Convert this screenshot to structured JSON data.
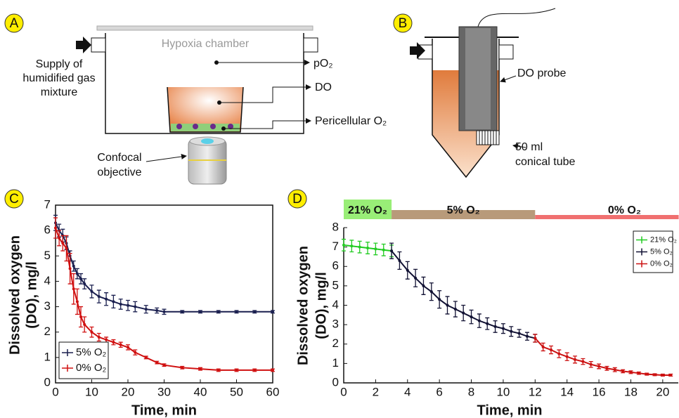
{
  "panel_labels": [
    "A",
    "B",
    "C",
    "D"
  ],
  "diagram_a": {
    "chamber": "Hypoxia chamber",
    "supply": [
      "Supply of",
      "humidified gas",
      "mixture"
    ],
    "po2": "pO₂",
    "do": "DO",
    "pericellular": "Pericellular  O₂",
    "objective": [
      "Confocal",
      "objective"
    ]
  },
  "diagram_b": {
    "probe": "DO probe",
    "tube": [
      "50 ml",
      "conical tube"
    ]
  },
  "chart_data": [
    {
      "type": "line",
      "xlabel": "Time, min",
      "ylabel": [
        "Dissolved oxygen",
        "(DO), mg/l"
      ],
      "xlim": [
        0,
        60
      ],
      "xticks": [
        0,
        10,
        20,
        30,
        40,
        50,
        60
      ],
      "ylim": [
        0,
        7
      ],
      "yticks": [
        0,
        1,
        2,
        3,
        4,
        5,
        6,
        7
      ],
      "legend": "lower left",
      "series": [
        {
          "name": "5% O₂",
          "color": "#1a1f4f",
          "x": [
            0,
            1,
            2,
            3,
            4,
            5,
            6,
            7,
            8,
            10,
            12,
            14,
            16,
            18,
            20,
            22,
            25,
            28,
            30,
            35,
            40,
            45,
            50,
            55,
            60
          ],
          "values": [
            6.3,
            6.0,
            5.8,
            5.5,
            5.0,
            4.6,
            4.3,
            4.1,
            3.9,
            3.6,
            3.4,
            3.3,
            3.2,
            3.1,
            3.05,
            3.0,
            2.9,
            2.85,
            2.8,
            2.8,
            2.8,
            2.8,
            2.8,
            2.8,
            2.8
          ],
          "errors": [
            0.3,
            0.25,
            0.25,
            0.25,
            0.2,
            0.2,
            0.2,
            0.2,
            0.2,
            0.25,
            0.25,
            0.25,
            0.25,
            0.2,
            0.2,
            0.2,
            0.15,
            0.1,
            0.1,
            0.05,
            0.05,
            0.05,
            0.05,
            0.05,
            0.05
          ]
        },
        {
          "name": "0% O₂",
          "color": "#d01010",
          "x": [
            0,
            1,
            2,
            3,
            4,
            5,
            6,
            7,
            8,
            10,
            12,
            14,
            16,
            18,
            20,
            22,
            25,
            28,
            30,
            35,
            40,
            45,
            50,
            55,
            60
          ],
          "values": [
            6.1,
            5.7,
            5.5,
            5.3,
            4.5,
            3.7,
            3.2,
            2.6,
            2.3,
            2.0,
            1.8,
            1.7,
            1.6,
            1.5,
            1.4,
            1.2,
            1.0,
            0.8,
            0.7,
            0.6,
            0.55,
            0.5,
            0.5,
            0.5,
            0.5
          ],
          "errors": [
            0.4,
            0.3,
            0.3,
            0.5,
            0.6,
            0.6,
            0.5,
            0.4,
            0.3,
            0.2,
            0.15,
            0.1,
            0.1,
            0.1,
            0.1,
            0.1,
            0.05,
            0.05,
            0.05,
            0.05,
            0.05,
            0.05,
            0.05,
            0.05,
            0.05
          ]
        }
      ]
    },
    {
      "type": "line",
      "xlabel": "Time, min",
      "ylabel": [
        "Dissolved oxygen",
        "(DO), mg/l"
      ],
      "xlim": [
        0,
        20.8
      ],
      "xticks": [
        0,
        2,
        4,
        6,
        8,
        10,
        12,
        14,
        16,
        18,
        20
      ],
      "ylim": [
        0,
        8
      ],
      "yticks": [
        0,
        1,
        2,
        3,
        4,
        5,
        6,
        7,
        8
      ],
      "legend": "upper right",
      "phases": [
        {
          "label": "21% O₂",
          "start": 0,
          "end": 3,
          "color": "#99ee77"
        },
        {
          "label": "5% O₂",
          "start": 3,
          "end": 12,
          "color": "#b89a7a"
        },
        {
          "label": "0% O₂",
          "start": 12,
          "end": 21,
          "color": "#f07070"
        }
      ],
      "series": [
        {
          "name": "21% O₂",
          "color": "#22cc22",
          "x": [
            0,
            0.5,
            1,
            1.5,
            2,
            2.5,
            3
          ],
          "values": [
            7.1,
            7.05,
            7.0,
            6.95,
            6.9,
            6.85,
            6.8
          ],
          "errors": [
            0.3,
            0.3,
            0.3,
            0.3,
            0.3,
            0.3,
            0.3
          ]
        },
        {
          "name": "5% O₂",
          "color": "#111133",
          "x": [
            3,
            3.5,
            4,
            4.5,
            5,
            5.5,
            6,
            6.5,
            7,
            7.5,
            8,
            8.5,
            9,
            9.5,
            10,
            10.5,
            11,
            11.5,
            12
          ],
          "values": [
            6.8,
            6.3,
            5.8,
            5.4,
            5.0,
            4.7,
            4.3,
            4.0,
            3.8,
            3.6,
            3.4,
            3.2,
            3.05,
            2.9,
            2.8,
            2.65,
            2.55,
            2.4,
            2.3
          ],
          "errors": [
            0.4,
            0.45,
            0.45,
            0.45,
            0.45,
            0.45,
            0.45,
            0.45,
            0.4,
            0.4,
            0.35,
            0.35,
            0.3,
            0.3,
            0.25,
            0.25,
            0.2,
            0.2,
            0.2
          ]
        },
        {
          "name": "0% O₂",
          "color": "#cc1111",
          "x": [
            12,
            12.5,
            13,
            13.5,
            14,
            14.5,
            15,
            15.5,
            16,
            16.5,
            17,
            17.5,
            18,
            18.5,
            19,
            19.5,
            20,
            20.5
          ],
          "values": [
            2.3,
            1.85,
            1.7,
            1.5,
            1.35,
            1.2,
            1.1,
            0.95,
            0.85,
            0.75,
            0.68,
            0.6,
            0.55,
            0.5,
            0.45,
            0.42,
            0.4,
            0.4
          ],
          "errors": [
            0.2,
            0.2,
            0.2,
            0.2,
            0.2,
            0.18,
            0.15,
            0.15,
            0.12,
            0.1,
            0.1,
            0.08,
            0.07,
            0.06,
            0.05,
            0.05,
            0.05,
            0.05
          ]
        }
      ]
    }
  ]
}
